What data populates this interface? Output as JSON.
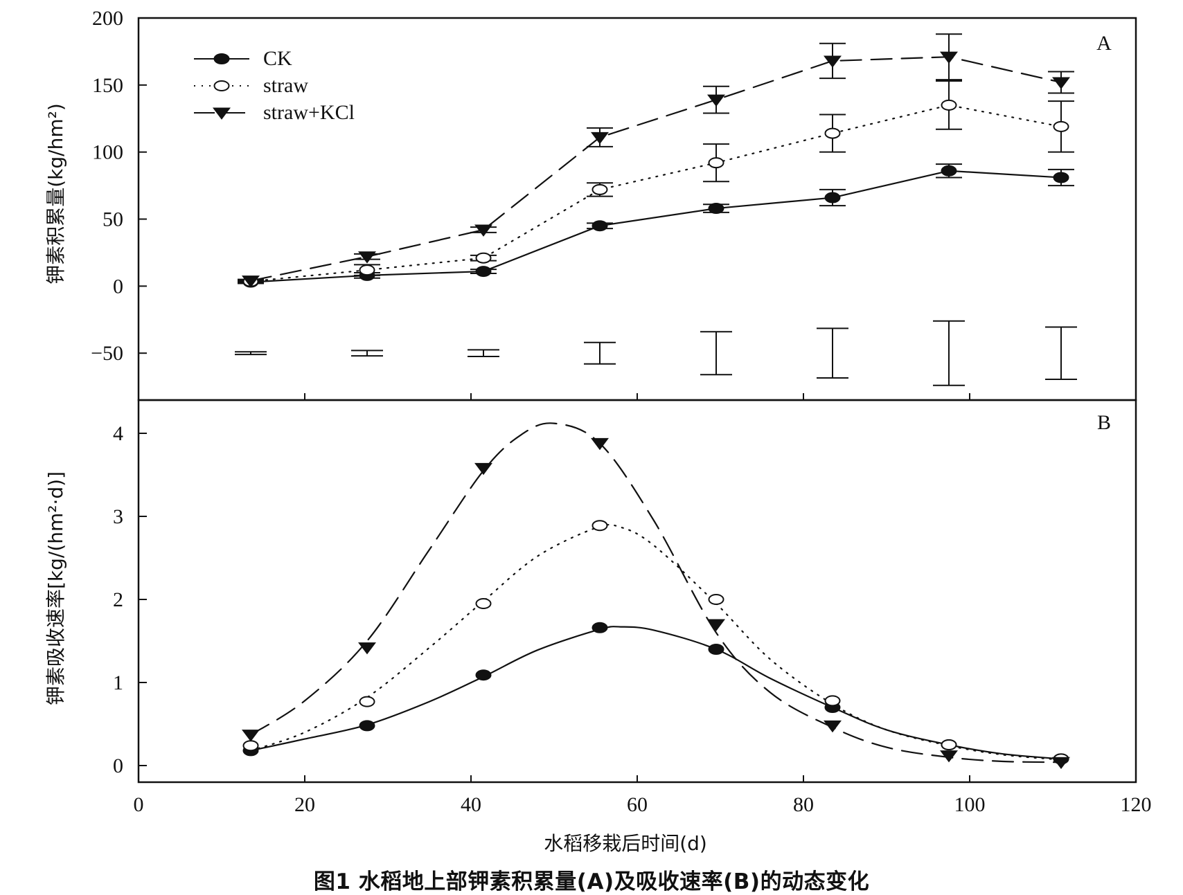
{
  "caption": "图1    水稻地上部钾素积累量(A)及吸收速率(B)的动态变化",
  "chart_data": [
    {
      "panel": "A",
      "type": "line",
      "ylabel": "钾素积累量(kg/hm²)",
      "xlabel": "水稻移栽后时间(d)",
      "xlim": [
        0,
        120
      ],
      "ylim": [
        -85,
        200
      ],
      "yticks": [
        -50,
        0,
        50,
        100,
        150,
        200
      ],
      "ytick_labels": [
        "−50",
        "0",
        "50",
        "100",
        "150",
        "200"
      ],
      "x": [
        13.5,
        27.5,
        41.5,
        55.5,
        69.5,
        83.5,
        97.5,
        111
      ],
      "legend": {
        "position": "top-left",
        "entries": [
          "CK",
          "straw",
          "straw+KCl"
        ]
      },
      "series": [
        {
          "name": "CK",
          "marker": "filled-circle",
          "line": "solid",
          "values": [
            3,
            8,
            11,
            45,
            58,
            66,
            86,
            81
          ],
          "errors": [
            1,
            2,
            1.5,
            2,
            3,
            6,
            5,
            6
          ]
        },
        {
          "name": "straw",
          "marker": "open-circle",
          "line": "dotted",
          "values": [
            3.5,
            12,
            21,
            72,
            92,
            114,
            135,
            119
          ],
          "errors": [
            1,
            4,
            2,
            5,
            14,
            14,
            18,
            19
          ]
        },
        {
          "name": "straw+KCl",
          "marker": "filled-triangle-down",
          "line": "dashed",
          "values": [
            4,
            22,
            42,
            111,
            139,
            168,
            171,
            152
          ],
          "errors": [
            1,
            2,
            2,
            7,
            10,
            13,
            17,
            8
          ]
        }
      ],
      "lsd_bars": {
        "center": -50,
        "x": [
          13.5,
          27.5,
          41.5,
          55.5,
          69.5,
          83.5,
          97.5,
          111
        ],
        "half_range": [
          1,
          2,
          2.5,
          8,
          16,
          18.5,
          24,
          19.5
        ]
      },
      "annotation": "A"
    },
    {
      "panel": "B",
      "type": "line",
      "ylabel": "钾素吸收速率[kg/(hm²·d)]",
      "xlabel": "水稻移栽后时间(d)",
      "xlim": [
        0,
        120
      ],
      "ylim": [
        -0.2,
        4.4
      ],
      "xticks": [
        0,
        20,
        40,
        60,
        80,
        100,
        120
      ],
      "yticks": [
        0,
        1,
        2,
        3,
        4
      ],
      "x": [
        13.5,
        27.5,
        41.5,
        55.5,
        69.5,
        83.5,
        97.5,
        111
      ],
      "series": [
        {
          "name": "CK",
          "marker": "filled-circle",
          "line": "solid",
          "points": [
            0.18,
            0.48,
            1.09,
            1.66,
            1.4,
            0.7,
            0.25,
            0.08
          ],
          "curve_x": [
            13.5,
            20,
            27.5,
            35,
            41.5,
            48,
            55.5,
            58,
            62,
            69.5,
            76,
            83.5,
            90,
            97.5,
            104,
            111
          ],
          "curve_y": [
            0.18,
            0.32,
            0.49,
            0.77,
            1.07,
            1.39,
            1.64,
            1.67,
            1.63,
            1.4,
            1.05,
            0.7,
            0.43,
            0.25,
            0.14,
            0.08
          ]
        },
        {
          "name": "straw",
          "marker": "open-circle",
          "line": "dotted",
          "points": [
            0.24,
            0.77,
            1.95,
            2.89,
            2.0,
            0.78,
            0.25,
            0.08
          ],
          "curve_x": [
            13.5,
            20,
            27.5,
            35,
            41.5,
            48,
            55,
            58,
            62,
            69.5,
            76,
            83.5,
            90,
            97.5,
            104,
            111
          ],
          "curve_y": [
            0.18,
            0.4,
            0.82,
            1.42,
            1.98,
            2.52,
            2.86,
            2.87,
            2.65,
            1.95,
            1.28,
            0.74,
            0.43,
            0.24,
            0.13,
            0.07
          ]
        },
        {
          "name": "straw+KCl",
          "marker": "filled-triangle-down",
          "line": "dashed",
          "points": [
            0.37,
            1.42,
            3.58,
            3.88,
            1.7,
            0.48,
            0.12,
            0.04
          ],
          "curve_x": [
            13.5,
            20,
            27.5,
            35,
            41.5,
            46,
            50,
            55.5,
            62,
            69.5,
            76,
            83.5,
            90,
            97.5,
            104,
            111
          ],
          "curve_y": [
            0.37,
            0.78,
            1.5,
            2.6,
            3.55,
            3.98,
            4.12,
            3.88,
            2.95,
            1.6,
            0.88,
            0.46,
            0.22,
            0.1,
            0.05,
            0.04
          ]
        }
      ],
      "annotation": "B"
    }
  ]
}
